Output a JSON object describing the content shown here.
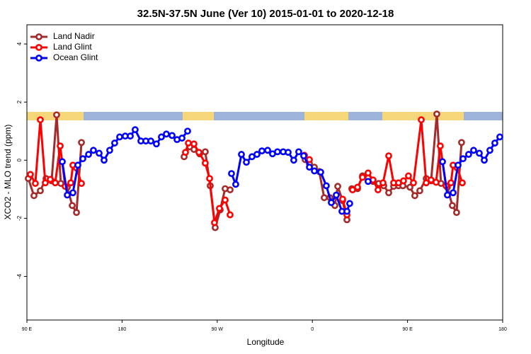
{
  "chart_data": {
    "type": "line",
    "title": "32.5N-37.5N June (Ver 10)   2015-01-01 to 2020-12-18",
    "x_label": "Longitude",
    "y_label": "XCO2 - MLO trend (ppm)",
    "xlim": [
      90,
      540
    ],
    "xticks": [
      {
        "value": 90,
        "label": "90 E"
      },
      {
        "value": 180,
        "label": "180"
      },
      {
        "value": 270,
        "label": "90 W"
      },
      {
        "value": 360,
        "label": "0"
      },
      {
        "value": 450,
        "label": "90 E"
      },
      {
        "value": 540,
        "label": "180"
      }
    ],
    "ylim": [
      -5.5,
      4.66
    ],
    "yticks": [
      -4,
      -2,
      0,
      2,
      4
    ],
    "legend": "top-left",
    "series": [
      {
        "name": "Land Nadir",
        "color": "#a52a2a",
        "x": [
          91.3,
          96.7,
          102.7,
          108.1,
          113.4,
          118.1,
          122.1,
          128.2,
          132.9,
          136.9,
          141.6,
          null,
          238.7,
          244,
          248,
          253.4,
          258.7,
          263.4,
          268.1,
          272.8,
          277.5,
          282.2,
          null,
          353.2,
          357.2,
          361.9,
          366.5,
          371.2,
          376.6,
          381.3,
          384,
          388.6,
          392.7,
          null,
          397.3,
          402.7,
          407.4,
          412.7,
          417.4,
          422.8,
          427.5,
          432.2,
          436.9,
          441.5,
          445.6,
          452.3,
          456.9,
          461.6,
          467.7,
          472.3,
          477.7,
          481.7,
          487.7,
          492.4,
          496.4,
          501.1
        ],
        "values": [
          -0.63,
          -1.22,
          -1.05,
          -0.63,
          -0.71,
          1.56,
          -0.8,
          -0.93,
          -1.56,
          -1.8,
          0.61,
          null,
          0.12,
          0.46,
          0.37,
          0.22,
          0.29,
          -0.88,
          -2.32,
          -1.71,
          -0.98,
          -1.02,
          null,
          0.02,
          -0.12,
          -0.24,
          -0.39,
          -1.29,
          -1.29,
          -1.56,
          -0.9,
          -1.39,
          -2.05,
          null,
          -0.98,
          -0.98,
          -0.54,
          -0.61,
          -0.73,
          -0.8,
          -0.88,
          -1.12,
          -0.9,
          -0.88,
          -0.88,
          -0.93,
          -1.22,
          -1.05,
          -0.63,
          -0.71,
          1.59,
          -0.8,
          -0.93,
          -1.56,
          -1.8,
          0.61
        ]
      },
      {
        "name": "Land Glint",
        "color": "#ff0000",
        "x": [
          93.3,
          98,
          102.7,
          107.4,
          112.1,
          116.8,
          121.5,
          126.2,
          131.5,
          133.5,
          136.9,
          141.6,
          null,
          240,
          242.7,
          248,
          252.7,
          258.7,
          262.8,
          267.4,
          272.1,
          277.5,
          282.2,
          null,
          352.5,
          357.2,
          null,
          388.6,
          392.7,
          null,
          398,
          402.7,
          407.4,
          412.7,
          417.4,
          422.1,
          426.8,
          432.2,
          436.9,
          441.5,
          446.2,
          450.9,
          455.6,
          463,
          467.7,
          472.3,
          477,
          481,
          486.4,
          491.1,
          493.1,
          497.1,
          501.8
        ],
        "values": [
          -0.49,
          -0.8,
          1.39,
          -0.78,
          -0.66,
          -0.78,
          0.49,
          -0.9,
          -0.78,
          -0.17,
          -0.27,
          -0.8,
          null,
          0.27,
          0.59,
          0.56,
          0.27,
          -0.1,
          -0.63,
          -2.15,
          -1.66,
          -1.37,
          -1.88,
          null,
          0.17,
          0.02,
          null,
          -1.34,
          -1.88,
          null,
          -1.02,
          -0.93,
          -0.59,
          -0.44,
          -0.68,
          -1.02,
          -0.78,
          0.15,
          -0.78,
          -0.78,
          -0.71,
          -0.54,
          -0.78,
          1.39,
          -0.78,
          -0.68,
          -0.76,
          0.49,
          -0.88,
          -0.78,
          -0.17,
          -0.27,
          -0.78
        ]
      },
      {
        "name": "Ocean Glint",
        "color": "#0000ff",
        "x": [
          123.5,
          128.2,
          133.5,
          138.2,
          142.9,
          148.3,
          152.9,
          158.3,
          163,
          168.3,
          173,
          177.7,
          183,
          187.8,
          192.4,
          197.8,
          202.5,
          207.2,
          212.5,
          217.2,
          221.9,
          227.3,
          232,
          236.7,
          242,
          null,
          283.5,
          287.5,
          292.9,
          297.6,
          302.9,
          307.6,
          312.3,
          317.7,
          322.3,
          327,
          332.4,
          337.1,
          342.4,
          347.1,
          351.8,
          357.2,
          361.9,
          367.9,
          373.2,
          377.9,
          382.6,
          388,
          392.7,
          395.3,
          null,
          412.7,
          null,
          483.1,
          487.7,
          493.1,
          497.8,
          502.5,
          507.8,
          512.5,
          517.9,
          522.6,
          527.9,
          532.6,
          537.3
        ],
        "values": [
          -0.05,
          -1.2,
          -1.12,
          -0.17,
          0.05,
          0.2,
          0.34,
          0.24,
          0,
          0.34,
          0.59,
          0.8,
          0.83,
          0.83,
          1.05,
          0.66,
          0.66,
          0.66,
          0.56,
          0.8,
          0.9,
          0.85,
          0.71,
          0.76,
          1.0,
          null,
          -0.46,
          -0.83,
          0.2,
          -0.07,
          0.12,
          0.2,
          0.32,
          0.34,
          0.22,
          0.29,
          0.29,
          0.27,
          0,
          0.29,
          0.15,
          -0.24,
          -0.37,
          -0.41,
          -0.88,
          -1.46,
          -1.2,
          -1.76,
          -1.76,
          -1.49,
          null,
          -0.73,
          null,
          -0.05,
          -1.2,
          -1.12,
          -0.17,
          0.05,
          0.2,
          0.34,
          0.24,
          0,
          0.34,
          0.59,
          0.8
        ]
      }
    ]
  }
}
